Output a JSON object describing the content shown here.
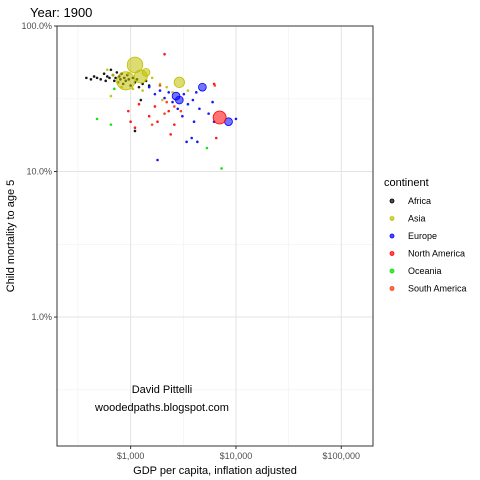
{
  "chart_data": {
    "type": "scatter",
    "title": "Year: 1900",
    "xlabel": "GDP per capita, inflation adjusted",
    "ylabel": "Child mortality to age 5",
    "xscale": "log",
    "yscale": "log",
    "xlim": [
      200,
      200000
    ],
    "ylim": [
      0.0013,
      1.0
    ],
    "xticks": [
      {
        "value": 1000,
        "label": "$1,000"
      },
      {
        "value": 10000,
        "label": "$10,000"
      },
      {
        "value": 100000,
        "label": "$100,000"
      }
    ],
    "yticks": [
      {
        "value": 0.01,
        "label": "1.0%"
      },
      {
        "value": 0.1,
        "label": "10.0%"
      },
      {
        "value": 1.0,
        "label": "100.0%"
      }
    ],
    "grid": true,
    "legend": {
      "title": "continent",
      "placement": "right"
    },
    "annotation": [
      "David Pittelli",
      "woodedpaths.blogspot.com"
    ],
    "colors": {
      "Africa": "#000000",
      "Asia": "#bfbf00",
      "Europe": "#0000ff",
      "North America": "#ff0000",
      "Oceania": "#00dd00",
      "South America": "#ff3300"
    },
    "series": [
      {
        "name": "Africa",
        "points": [
          {
            "x": 380,
            "y": 0.44,
            "size": 1
          },
          {
            "x": 420,
            "y": 0.43,
            "size": 1
          },
          {
            "x": 450,
            "y": 0.45,
            "size": 1
          },
          {
            "x": 480,
            "y": 0.44,
            "size": 1
          },
          {
            "x": 520,
            "y": 0.43,
            "size": 1
          },
          {
            "x": 560,
            "y": 0.47,
            "size": 1
          },
          {
            "x": 580,
            "y": 0.42,
            "size": 1
          },
          {
            "x": 600,
            "y": 0.45,
            "size": 1
          },
          {
            "x": 630,
            "y": 0.44,
            "size": 1
          },
          {
            "x": 650,
            "y": 0.5,
            "size": 1
          },
          {
            "x": 680,
            "y": 0.46,
            "size": 1
          },
          {
            "x": 700,
            "y": 0.42,
            "size": 1
          },
          {
            "x": 720,
            "y": 0.44,
            "size": 1
          },
          {
            "x": 740,
            "y": 0.48,
            "size": 1
          },
          {
            "x": 760,
            "y": 0.41,
            "size": 1
          },
          {
            "x": 780,
            "y": 0.45,
            "size": 1
          },
          {
            "x": 800,
            "y": 0.43,
            "size": 1
          },
          {
            "x": 820,
            "y": 0.47,
            "size": 1
          },
          {
            "x": 850,
            "y": 0.4,
            "size": 1
          },
          {
            "x": 870,
            "y": 0.44,
            "size": 1
          },
          {
            "x": 900,
            "y": 0.42,
            "size": 1
          },
          {
            "x": 930,
            "y": 0.46,
            "size": 1
          },
          {
            "x": 960,
            "y": 0.43,
            "size": 1
          },
          {
            "x": 1000,
            "y": 0.39,
            "size": 1
          },
          {
            "x": 1050,
            "y": 0.44,
            "size": 1
          },
          {
            "x": 1100,
            "y": 0.41,
            "size": 1
          },
          {
            "x": 1150,
            "y": 0.43,
            "size": 1
          },
          {
            "x": 1200,
            "y": 0.38,
            "size": 1
          },
          {
            "x": 1300,
            "y": 0.4,
            "size": 1
          },
          {
            "x": 1400,
            "y": 0.42,
            "size": 1
          },
          {
            "x": 1500,
            "y": 0.39,
            "size": 1
          },
          {
            "x": 1100,
            "y": 0.19,
            "size": 1
          },
          {
            "x": 1250,
            "y": 0.31,
            "size": 1
          }
        ]
      },
      {
        "name": "Asia",
        "points": [
          {
            "x": 900,
            "y": 0.42,
            "size": 6
          },
          {
            "x": 1100,
            "y": 0.54,
            "size": 5
          },
          {
            "x": 1250,
            "y": 0.45,
            "size": 4
          },
          {
            "x": 1400,
            "y": 0.48,
            "size": 2
          },
          {
            "x": 2900,
            "y": 0.41,
            "size": 3
          },
          {
            "x": 600,
            "y": 0.5,
            "size": 1
          },
          {
            "x": 680,
            "y": 0.46,
            "size": 1
          },
          {
            "x": 750,
            "y": 0.41,
            "size": 1
          },
          {
            "x": 820,
            "y": 0.38,
            "size": 1
          },
          {
            "x": 950,
            "y": 0.47,
            "size": 1
          },
          {
            "x": 1050,
            "y": 0.37,
            "size": 1
          },
          {
            "x": 1300,
            "y": 0.36,
            "size": 1
          },
          {
            "x": 1600,
            "y": 0.44,
            "size": 1
          },
          {
            "x": 1900,
            "y": 0.4,
            "size": 1
          },
          {
            "x": 2200,
            "y": 0.38,
            "size": 1
          },
          {
            "x": 2500,
            "y": 0.35,
            "size": 1
          },
          {
            "x": 3500,
            "y": 0.36,
            "size": 1
          },
          {
            "x": 650,
            "y": 0.33,
            "size": 1
          },
          {
            "x": 2000,
            "y": 0.31,
            "size": 1
          }
        ]
      },
      {
        "name": "Europe",
        "points": [
          {
            "x": 1500,
            "y": 0.38,
            "size": 1
          },
          {
            "x": 1700,
            "y": 0.34,
            "size": 1
          },
          {
            "x": 1900,
            "y": 0.36,
            "size": 1
          },
          {
            "x": 2100,
            "y": 0.32,
            "size": 1
          },
          {
            "x": 2300,
            "y": 0.35,
            "size": 1
          },
          {
            "x": 2500,
            "y": 0.3,
            "size": 1
          },
          {
            "x": 2700,
            "y": 0.33,
            "size": 2
          },
          {
            "x": 2900,
            "y": 0.31,
            "size": 2
          },
          {
            "x": 3200,
            "y": 0.34,
            "size": 1
          },
          {
            "x": 3500,
            "y": 0.29,
            "size": 1
          },
          {
            "x": 3900,
            "y": 0.31,
            "size": 1
          },
          {
            "x": 4200,
            "y": 0.35,
            "size": 1
          },
          {
            "x": 4500,
            "y": 0.27,
            "size": 1
          },
          {
            "x": 4000,
            "y": 0.22,
            "size": 1
          },
          {
            "x": 4800,
            "y": 0.38,
            "size": 2
          },
          {
            "x": 5500,
            "y": 0.25,
            "size": 1
          },
          {
            "x": 6200,
            "y": 0.22,
            "size": 1
          },
          {
            "x": 8500,
            "y": 0.22,
            "size": 2
          },
          {
            "x": 10000,
            "y": 0.23,
            "size": 1
          },
          {
            "x": 3400,
            "y": 0.16,
            "size": 1
          },
          {
            "x": 4300,
            "y": 0.16,
            "size": 1
          },
          {
            "x": 3800,
            "y": 0.17,
            "size": 1
          },
          {
            "x": 1800,
            "y": 0.12,
            "size": 1
          },
          {
            "x": 2800,
            "y": 0.27,
            "size": 1
          },
          {
            "x": 3100,
            "y": 0.24,
            "size": 1
          },
          {
            "x": 6000,
            "y": 0.3,
            "size": 1
          }
        ]
      },
      {
        "name": "North America",
        "points": [
          {
            "x": 7000,
            "y": 0.235,
            "size": 4
          },
          {
            "x": 2100,
            "y": 0.64,
            "size": 1
          },
          {
            "x": 1700,
            "y": 0.28,
            "size": 1
          },
          {
            "x": 1200,
            "y": 0.29,
            "size": 1
          },
          {
            "x": 950,
            "y": 0.26,
            "size": 1
          },
          {
            "x": 1500,
            "y": 0.24,
            "size": 1
          },
          {
            "x": 1000,
            "y": 0.22,
            "size": 1
          },
          {
            "x": 1100,
            "y": 0.2,
            "size": 1
          },
          {
            "x": 2600,
            "y": 0.21,
            "size": 1
          },
          {
            "x": 2400,
            "y": 0.18,
            "size": 1
          },
          {
            "x": 2300,
            "y": 0.26,
            "size": 1
          },
          {
            "x": 1800,
            "y": 0.22,
            "size": 1
          },
          {
            "x": 6200,
            "y": 0.4,
            "size": 1
          },
          {
            "x": 6500,
            "y": 0.17,
            "size": 1
          }
        ]
      },
      {
        "name": "Oceania",
        "points": [
          {
            "x": 480,
            "y": 0.23,
            "size": 1
          },
          {
            "x": 700,
            "y": 0.37,
            "size": 1
          },
          {
            "x": 650,
            "y": 0.21,
            "size": 1
          },
          {
            "x": 7300,
            "y": 0.105,
            "size": 1
          },
          {
            "x": 5300,
            "y": 0.145,
            "size": 1
          }
        ]
      },
      {
        "name": "South America",
        "points": [
          {
            "x": 1900,
            "y": 0.39,
            "size": 1
          },
          {
            "x": 2200,
            "y": 0.3,
            "size": 1
          },
          {
            "x": 1600,
            "y": 0.21,
            "size": 1
          },
          {
            "x": 2600,
            "y": 0.28,
            "size": 1
          },
          {
            "x": 3000,
            "y": 0.26,
            "size": 1
          },
          {
            "x": 6300,
            "y": 0.39,
            "size": 1
          },
          {
            "x": 2100,
            "y": 0.25,
            "size": 1
          }
        ]
      }
    ]
  }
}
